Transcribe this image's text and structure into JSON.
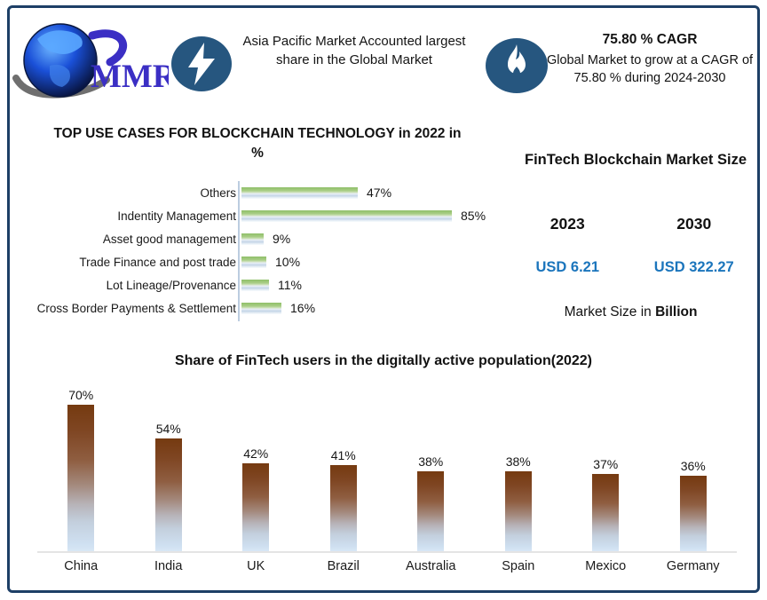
{
  "header": {
    "logo_text": "MMR",
    "asia_pacific_note": "Asia Pacific Market Accounted largest share in the Global Market",
    "cagr_title": "75.80 % CAGR",
    "cagr_note": "Global Market to grow at a CAGR of 75.80 % during 2024-2030"
  },
  "market_size": {
    "title": "FinTech Blockchain Market Size",
    "columns": [
      {
        "year": "2023",
        "value": "USD 6.21"
      },
      {
        "year": "2030",
        "value": "USD 322.27"
      }
    ],
    "note_prefix": "Market Size in ",
    "note_bold": "Billion",
    "value_color": "#1b75bc"
  },
  "chart_data": [
    {
      "type": "bar",
      "orientation": "horizontal",
      "title": "TOP USE CASES FOR BLOCKCHAIN TECHNOLOGY in 2022 in %",
      "categories": [
        "Others",
        "Indentity Management",
        "Asset good management",
        "Trade Finance and post trade",
        "Lot Lineage/Provenance",
        "Cross Border Payments & Settlement"
      ],
      "values": [
        47,
        85,
        9,
        10,
        11,
        16
      ],
      "value_labels": [
        "47%",
        "85%",
        "9%",
        "10%",
        "11%",
        "16%"
      ],
      "xlim": [
        0,
        90
      ],
      "grid": false,
      "legend": "none",
      "bar_colors": [
        "#8fbf69",
        "#c4d5e7"
      ]
    },
    {
      "type": "bar",
      "orientation": "vertical",
      "title": "Share of FinTech users in the digitally active population(2022)",
      "categories": [
        "China",
        "India",
        "UK",
        "Brazil",
        "Australia",
        "Spain",
        "Mexico",
        "Germany"
      ],
      "values": [
        70,
        54,
        42,
        41,
        38,
        38,
        37,
        36
      ],
      "value_labels": [
        "70%",
        "54%",
        "42%",
        "41%",
        "38%",
        "38%",
        "37%",
        "36%"
      ],
      "ylim": [
        0,
        75
      ],
      "grid": false,
      "legend": "none",
      "bar_colors": [
        "#753a10",
        "#cfe0f1"
      ]
    }
  ],
  "colors": {
    "frame_border": "#1d3f66",
    "icon_circle": "#26567f",
    "logo_blue": "#3b2fc4",
    "value_blue": "#1b75bc"
  }
}
